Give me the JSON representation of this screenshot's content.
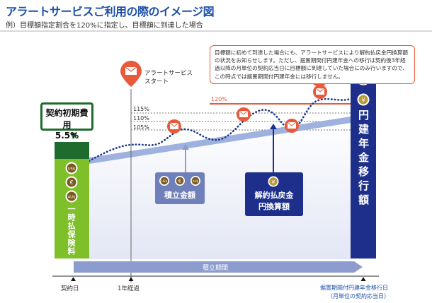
{
  "header": {
    "title": "アラートサービスご利用の際のイメージ図",
    "subtitle": "例）目標額指定割合を120%に指定し、目標額に到達した場合"
  },
  "note": "目標額に初めて到達した場合にも、アラートサービスにより解約払戻金円換算額の状況をお知らせします。ただし、据置期間付円建年金への移行は契約後3年経過以降の月単位の契約応当日に目標額に到達していた場合にのみ行いますので、この時点では据置期間付円建年金には移行しません。",
  "alert_start": {
    "line1": "アラートサービス",
    "line2": "スタート"
  },
  "levels": {
    "l120": "120%",
    "l115": "115%",
    "l110": "110%",
    "l105": "105%"
  },
  "keiyaku": {
    "line1": "契約初期費用",
    "line2": "5.5%"
  },
  "left_bar_label": "一時払保険料",
  "tsumitate_label": "積立金額",
  "kaiyaku_label": {
    "line1": "解約払戻金",
    "line2": "円換算額"
  },
  "right_bar_label": "円建年金移行額",
  "period_label": "積立期間",
  "axis": {
    "start": "契約日",
    "one_year": "1年経過",
    "end_line1": "据置期間付円建年金移行日",
    "end_line2": "（月単位の契約応当日）"
  },
  "icons": {
    "coin1": "US$",
    "coin2": "€",
    "coin3": "AU$",
    "yen": "¥"
  },
  "colors": {
    "title": "#1d4fa8",
    "green": "#7fbf2a",
    "dark_green": "#1f6b2e",
    "navy": "#1d2f8a",
    "alert_red": "#e85a3a",
    "trend": "#9fb2df",
    "area": "#e9ecf7",
    "dots": "#1d3a8a"
  }
}
